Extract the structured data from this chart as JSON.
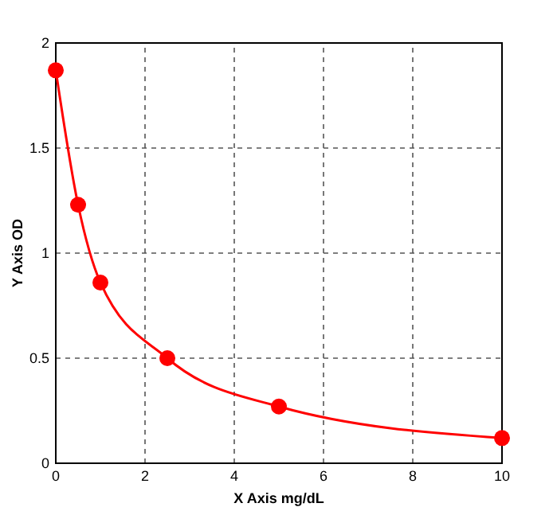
{
  "chart_data": {
    "type": "line",
    "xlabel": "X Axis mg/dL",
    "ylabel": "Y Axis OD",
    "x": [
      0,
      0.5,
      1,
      2.5,
      5,
      10
    ],
    "series": [
      {
        "color": "#ff0000",
        "values": [
          1.87,
          1.23,
          0.86,
          0.5,
          0.27,
          0.12
        ]
      }
    ],
    "xlim": [
      0,
      10
    ],
    "xticks": [
      0,
      2,
      4,
      6,
      8,
      10
    ],
    "ylim": [
      0,
      2
    ],
    "yticks": [
      0,
      0.5,
      1,
      1.5,
      2
    ],
    "grid": true,
    "marker": "circle",
    "line_style": "solid"
  }
}
